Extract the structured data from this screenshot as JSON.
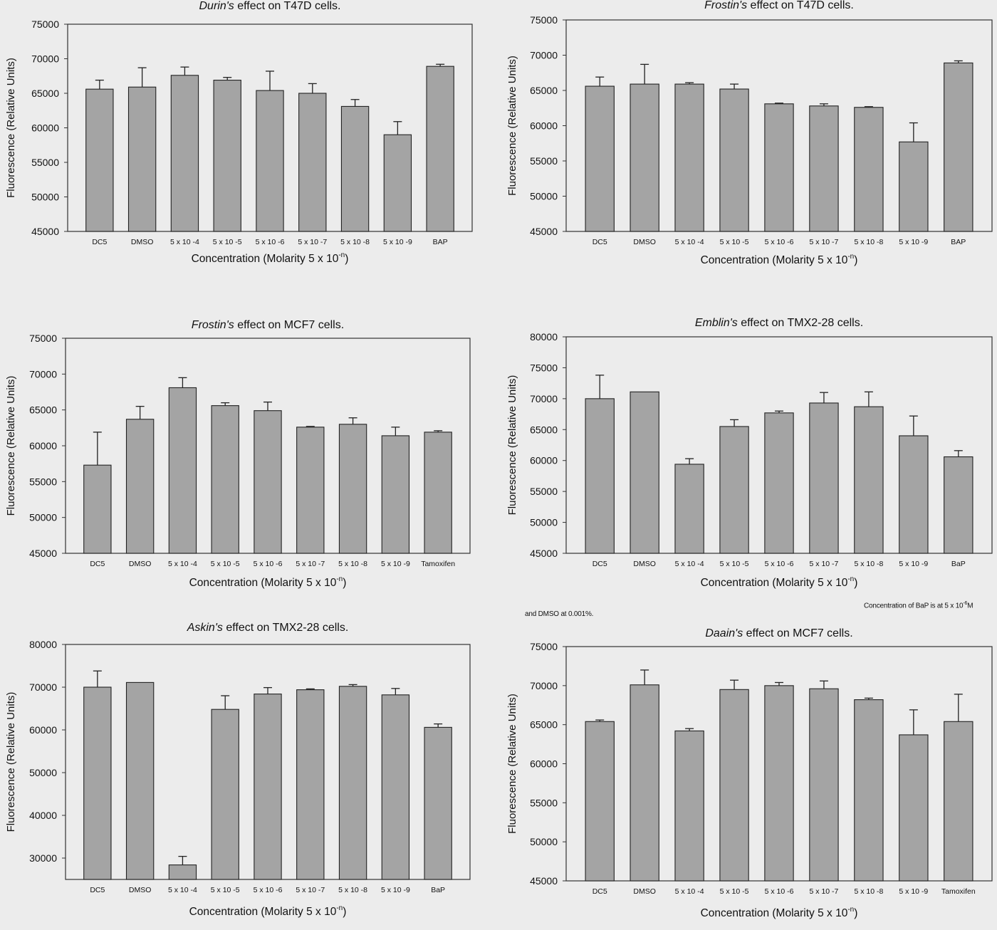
{
  "notes": {
    "bap_text": "Concentration of BaP is at 5 x 10",
    "bap_sup": "-6",
    "bap_unit": "M",
    "dmso_text": "and DMSO at 0.001%."
  },
  "chart_data": [
    {
      "type": "bar",
      "title_italic": "Durin's",
      "title_rest": " effect on T47D cells.",
      "xlabel_main": "Concentration (Molarity 5 x 10",
      "xlabel_sup": "-n",
      "xlabel_close": ")",
      "ylabel": "Fluorescence (Relative Units)",
      "ylim": [
        45000,
        75000
      ],
      "yticks": [
        "45000",
        "50000",
        "55000",
        "60000",
        "65000",
        "70000",
        "75000"
      ],
      "categories": [
        "DC5",
        "DMSO",
        "5 x 10 -4",
        "5 x 10 -5",
        "5 x 10 -6",
        "5 x 10 -7",
        "5 x 10 -8",
        "5 x 10 -9",
        "BAP"
      ],
      "values": [
        65600,
        65900,
        67600,
        66900,
        65400,
        65000,
        63100,
        59000,
        68900
      ],
      "errors": [
        1300,
        2800,
        1200,
        400,
        2800,
        1400,
        1000,
        1900,
        300
      ]
    },
    {
      "type": "bar",
      "title_italic": "Frostin's",
      "title_rest": " effect on T47D cells.",
      "xlabel_main": "Concentration (Molarity 5 x 10",
      "xlabel_sup": "-n",
      "xlabel_close": ")",
      "ylabel": "Fluorescence (Relative Units)",
      "ylim": [
        45000,
        75000
      ],
      "yticks": [
        "45000",
        "50000",
        "55000",
        "60000",
        "65000",
        "70000",
        "75000"
      ],
      "categories": [
        "DC5",
        "DMSO",
        "5 x 10 -4",
        "5 x 10 -5",
        "5 x 10 -6",
        "5 x 10 -7",
        "5 x 10 -8",
        "5 x 10 -9",
        "BAP"
      ],
      "values": [
        65600,
        65900,
        65900,
        65200,
        63100,
        62800,
        62600,
        57700,
        68900
      ],
      "errors": [
        1300,
        2800,
        200,
        700,
        100,
        300,
        100,
        2700,
        300
      ]
    },
    {
      "type": "bar",
      "title_italic": "Frostin's",
      "title_rest": " effect on MCF7 cells.",
      "xlabel_main": "Concentration (Molarity 5 x 10",
      "xlabel_sup": "-n",
      "xlabel_close": ")",
      "ylabel": "Fluorescence (Relative Units)",
      "ylim": [
        45000,
        75000
      ],
      "yticks": [
        "45000",
        "50000",
        "55000",
        "60000",
        "65000",
        "70000",
        "75000"
      ],
      "categories": [
        "DC5",
        "DMSO",
        "5 x 10 -4",
        "5 x 10 -5",
        "5 x 10 -6",
        "5 x 10 -7",
        "5 x 10 -8",
        "5 x 10 -9",
        "Tamoxifen"
      ],
      "values": [
        57300,
        63700,
        68100,
        65600,
        64900,
        62600,
        63000,
        61400,
        61900
      ],
      "errors": [
        4600,
        1800,
        1400,
        400,
        1200,
        100,
        900,
        1200,
        200
      ]
    },
    {
      "type": "bar",
      "title_italic": "Emblin's",
      "title_rest": " effect on TMX2-28 cells.",
      "xlabel_main": "Concentration (Molarity 5 x 10",
      "xlabel_sup": "-n",
      "xlabel_close": ")",
      "ylabel": "Fluorescence (Relative Units)",
      "ylim": [
        45000,
        80000
      ],
      "yticks": [
        "45000",
        "50000",
        "55000",
        "60000",
        "65000",
        "70000",
        "75000",
        "80000"
      ],
      "categories": [
        "DC5",
        "DMSO",
        "5 x 10 -4",
        "5 x 10 -5",
        "5 x 10 -6",
        "5 x 10 -7",
        "5 x 10 -8",
        "5 x 10 -9",
        "BaP"
      ],
      "values": [
        70000,
        71100,
        59400,
        65500,
        67700,
        69300,
        68700,
        64000,
        60600
      ],
      "errors": [
        3800,
        0,
        900,
        1100,
        300,
        1700,
        2400,
        3200,
        1000
      ]
    },
    {
      "type": "bar",
      "title_italic": "Askin's",
      "title_rest": " effect on TMX2-28 cells.",
      "xlabel_main": "Concentration (Molarity 5 x 10",
      "xlabel_sup": "-n",
      "xlabel_close": ")",
      "ylabel": "Fluorescence (Relative Units)",
      "ylim": [
        25000,
        80000
      ],
      "yticks": [
        "30000",
        "40000",
        "50000",
        "60000",
        "70000",
        "80000"
      ],
      "categories": [
        "DC5",
        "DMSO",
        "5 x 10 -4",
        "5 x 10 -5",
        "5 x 10 -6",
        "5 x 10 -7",
        "5 x 10 -8",
        "5 x 10 -9",
        "BaP"
      ],
      "values": [
        70000,
        71100,
        28400,
        64800,
        68400,
        69400,
        70200,
        68200,
        60600
      ],
      "errors": [
        3800,
        0,
        2000,
        3200,
        1500,
        200,
        400,
        1500,
        800
      ]
    },
    {
      "type": "bar",
      "title_italic": "Daain's",
      "title_rest": " effect on MCF7 cells.",
      "xlabel_main": "Concentration (Molarity 5 x 10",
      "xlabel_sup": "-n",
      "xlabel_close": ")",
      "ylabel": "Fluorescence (Relative Units)",
      "ylim": [
        45000,
        75000
      ],
      "yticks": [
        "45000",
        "50000",
        "55000",
        "60000",
        "65000",
        "70000",
        "75000"
      ],
      "categories": [
        "DC5",
        "DMSO",
        "5 x 10 -4",
        "5 x 10 -5",
        "5 x 10 -6",
        "5 x 10 -7",
        "5 x 10 -8",
        "5 x 10 -9",
        "Tamoxifen"
      ],
      "values": [
        65400,
        70100,
        64200,
        69500,
        70000,
        69600,
        68200,
        63700,
        65400
      ],
      "errors": [
        200,
        1900,
        300,
        1200,
        400,
        1000,
        200,
        3200,
        3500
      ]
    }
  ]
}
